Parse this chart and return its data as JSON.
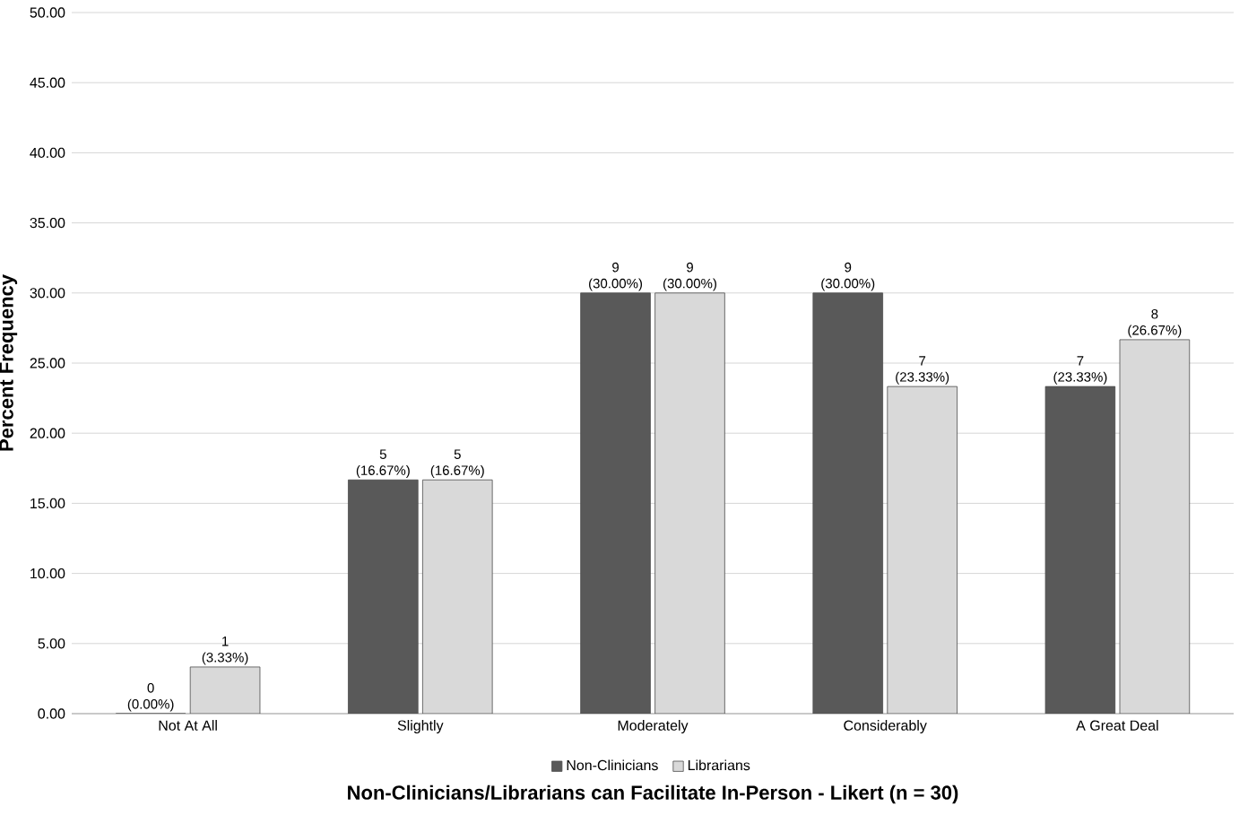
{
  "chart_data": {
    "type": "bar",
    "xlabel": "Non-Clinicians/Librarians can Facilitate In-Person - Likert (n = 30)",
    "ylabel": "Percent Frequency",
    "categories": [
      "Not At All",
      "Slightly",
      "Moderately",
      "Considerably",
      "A Great Deal"
    ],
    "series": [
      {
        "name": "Non-Clinicians",
        "color": "#595959",
        "values": [
          0,
          16.67,
          30,
          30,
          23.33
        ],
        "value_labels": [
          "0 (0.00%)",
          "5 (16.67%)",
          "9 (30.00%)",
          "9 (30.00%)",
          "7 (23.33%)"
        ]
      },
      {
        "name": "Librarians",
        "color": "#d9d9d9",
        "values": [
          3.33,
          16.67,
          30,
          23.33,
          26.67
        ],
        "value_labels": [
          "1 (3.33%)",
          "5 (16.67%)",
          "9 (30.00%)",
          "7 (23.33%)",
          "8 (26.67%)"
        ]
      }
    ],
    "ylim": [
      0,
      50
    ],
    "yticks": [
      {
        "value": 0,
        "label": "0.00"
      },
      {
        "value": 5,
        "label": "5.00"
      },
      {
        "value": 10,
        "label": "10.00"
      },
      {
        "value": 15,
        "label": "15.00"
      },
      {
        "value": 20,
        "label": "20.00"
      },
      {
        "value": 25,
        "label": "25.00"
      },
      {
        "value": 30,
        "label": "30.00"
      },
      {
        "value": 35,
        "label": "35.00"
      },
      {
        "value": 40,
        "label": "40.00"
      },
      {
        "value": 45,
        "label": "45.00"
      },
      {
        "value": 50,
        "label": "50.00"
      }
    ],
    "grid": "y",
    "legend": "bottom"
  }
}
